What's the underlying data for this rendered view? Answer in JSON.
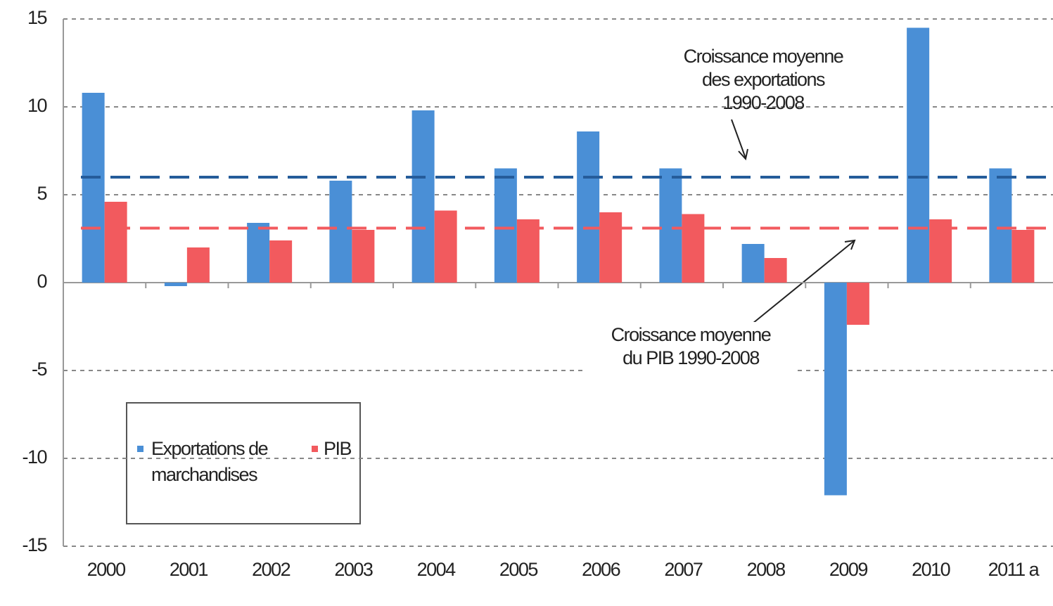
{
  "chart_data": {
    "type": "bar",
    "categories": [
      "2000",
      "2001",
      "2002",
      "2003",
      "2004",
      "2005",
      "2006",
      "2007",
      "2008",
      "2009",
      "2010",
      "2011 a"
    ],
    "series": [
      {
        "name": "Exportations de marchandises",
        "color": "#4a8fd6",
        "values": [
          10.8,
          -0.2,
          3.4,
          5.8,
          9.8,
          6.5,
          8.6,
          6.5,
          2.2,
          -12.1,
          14.5,
          6.5
        ]
      },
      {
        "name": "PIB",
        "color": "#f25a5e",
        "values": [
          4.6,
          2.0,
          2.4,
          3.0,
          4.1,
          3.6,
          4.0,
          3.9,
          1.4,
          -2.4,
          3.6,
          3.0
        ]
      }
    ],
    "reference_lines": [
      {
        "value": 6.0,
        "color": "#255c9a",
        "label_lines": [
          "Croissance moyenne",
          "des exportations",
          "1990-2008"
        ]
      },
      {
        "value": 3.1,
        "color": "#f25a5e",
        "label_lines": [
          "Croissance moyenne",
          "du PIB 1990-2008"
        ]
      }
    ],
    "ylim": [
      -15,
      15
    ],
    "yticks": [
      -15,
      -10,
      -5,
      0,
      5,
      10,
      15
    ],
    "grid": true
  }
}
